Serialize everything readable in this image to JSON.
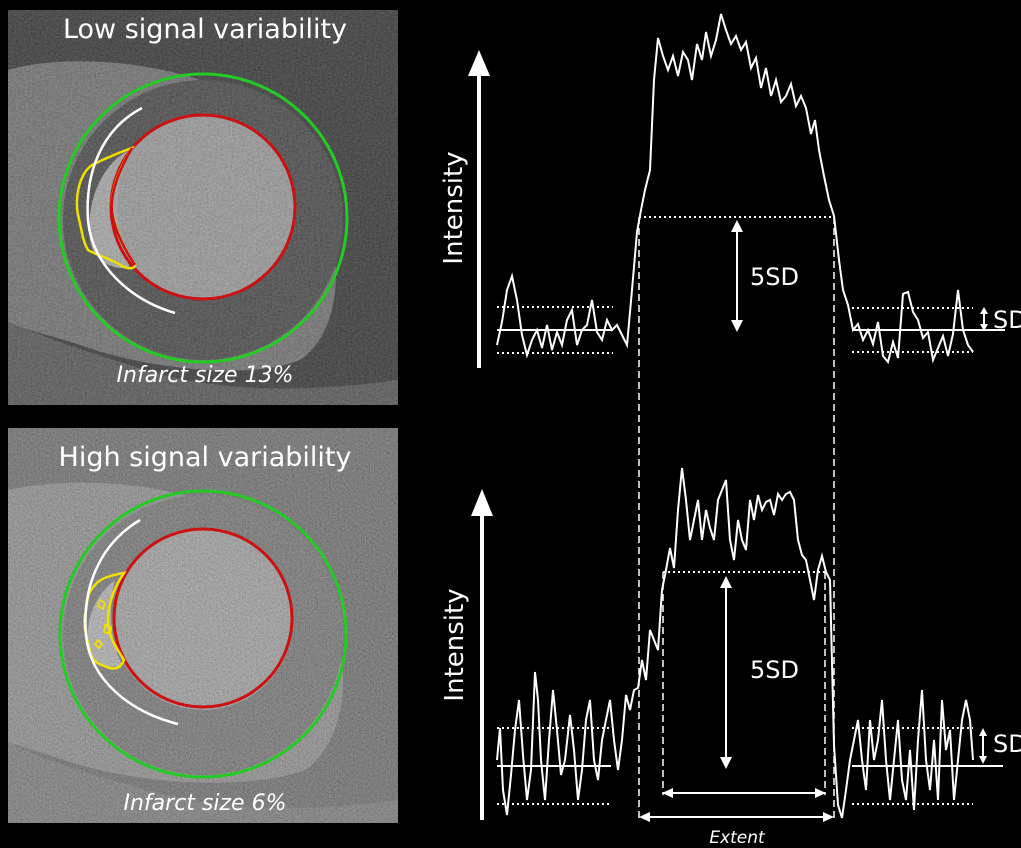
{
  "panels": {
    "top": {
      "title": "Low signal variability",
      "caption": "Infarct size 13%",
      "axis_label": "Intensity",
      "threshold_label": "5SD",
      "sd_label": "SD"
    },
    "bottom": {
      "title": "High signal variability",
      "caption": "Infarct size 6%",
      "axis_label": "Intensity",
      "threshold_label": "5SD",
      "sd_label": "SD",
      "extent_label": "Extent"
    }
  },
  "colors": {
    "epicardium": "#22cc22",
    "endocardium": "#cc1111",
    "infarct": "#f0e000",
    "profile": "#ffffff"
  }
}
